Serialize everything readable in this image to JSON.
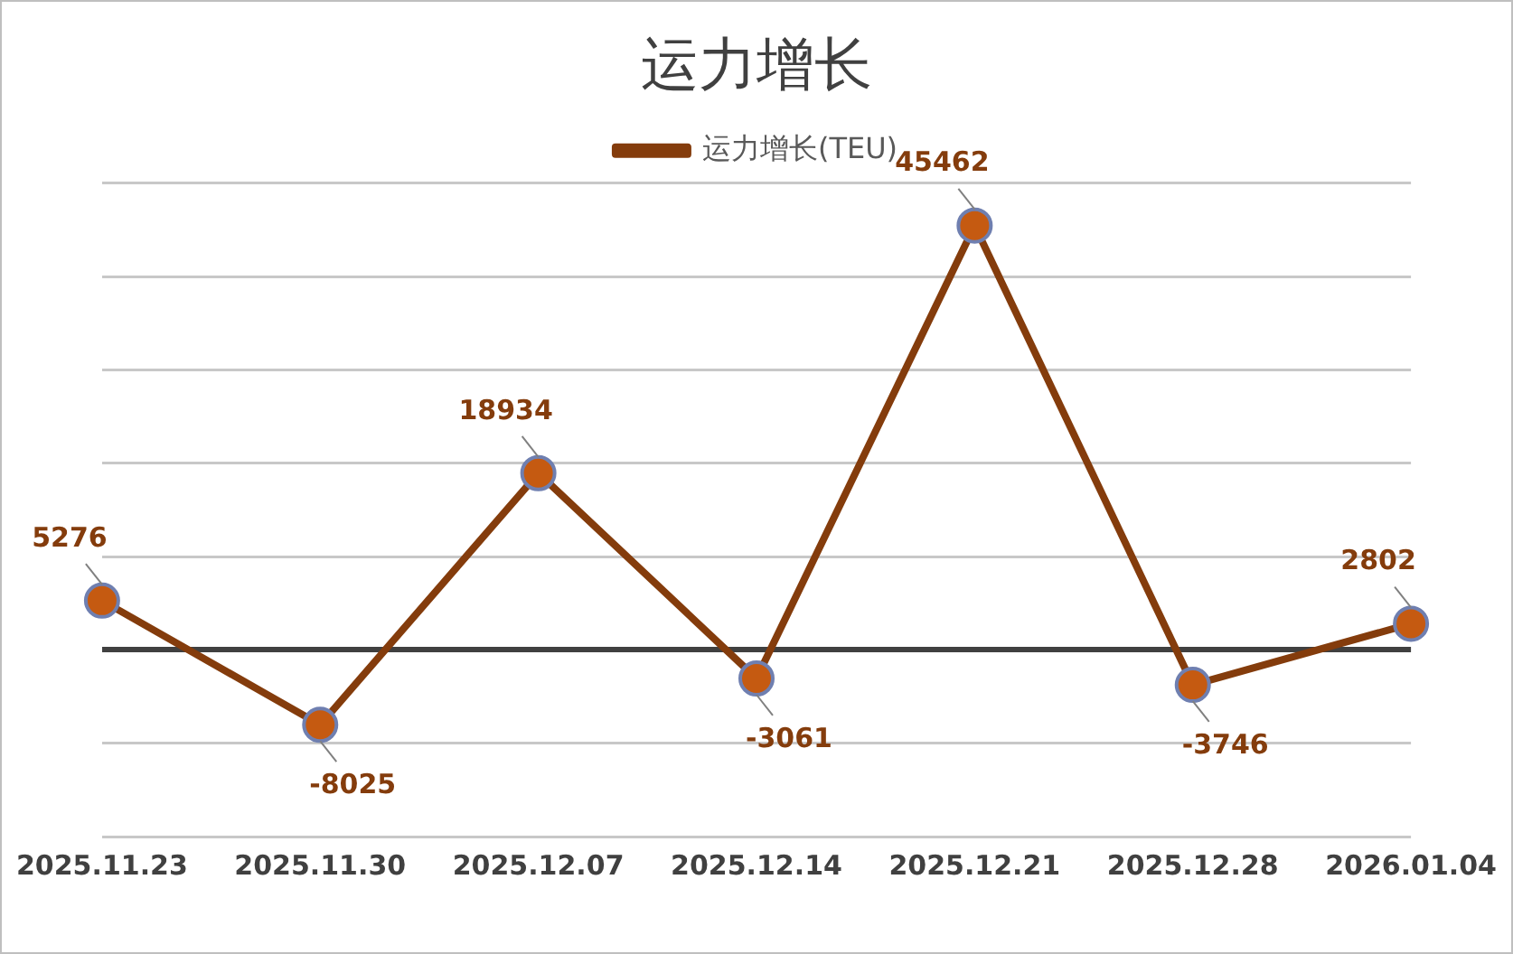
{
  "chart_data": {
    "type": "line",
    "title": "运力增长",
    "categories": [
      "2025.11.23",
      "2025.11.30",
      "2025.12.07",
      "2025.12.14",
      "2025.12.21",
      "2025.12.28",
      "2026.01.04"
    ],
    "series": [
      {
        "name": "运力增长(TEU)",
        "color": "#843c0c",
        "values": [
          5276,
          -8025,
          18934,
          -3061,
          45462,
          -3746,
          2802
        ]
      }
    ],
    "ylim": [
      -20000,
      50000
    ],
    "yticks": [
      {
        "value": -20000,
        "label": null
      },
      {
        "value": -10000,
        "label": null
      },
      {
        "value": 0,
        "label": null
      },
      {
        "value": 10000,
        "label": null
      },
      {
        "value": 20000,
        "label": null
      },
      {
        "value": 30000,
        "label": null
      },
      {
        "value": 40000,
        "label": null
      },
      {
        "value": 50000,
        "label": null
      }
    ],
    "grid": "y",
    "legend": "top",
    "marker": "circle",
    "line_style": "solid",
    "data_labels": true,
    "tick_labels": "x"
  }
}
